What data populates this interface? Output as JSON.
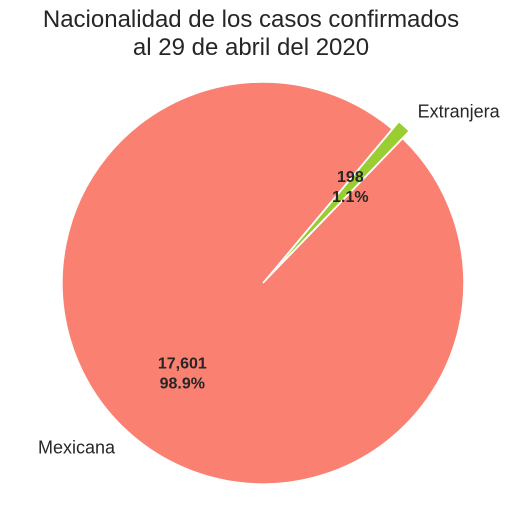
{
  "chart_data": {
    "type": "pie",
    "title_lines": [
      "Nacionalidad de los casos confirmados",
      "al 29 de abril del 2020"
    ],
    "categories": [
      "Mexicana",
      "Extranjera"
    ],
    "values": [
      17601,
      198
    ],
    "value_labels": [
      "17,601",
      "198"
    ],
    "percent_labels": [
      "98.9%",
      "1.1%"
    ],
    "colors": [
      "#fa8072",
      "#9acd32"
    ],
    "exploded": "Extranjera",
    "legend": "none"
  }
}
